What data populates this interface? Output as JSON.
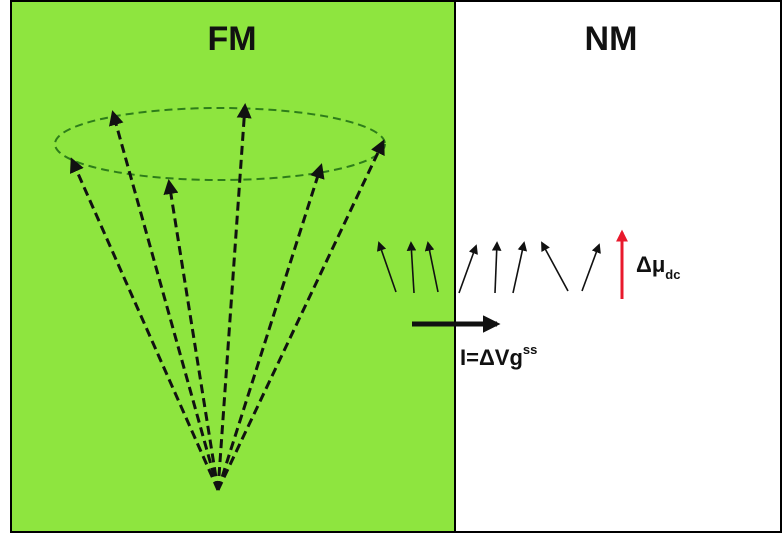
{
  "regions": {
    "left_label": "FM",
    "right_label": "NM"
  },
  "labels": {
    "current_main": "I=ΔVg",
    "current_sup": "ss",
    "mu_main": "Δμ",
    "mu_sub": "dc"
  },
  "colors": {
    "fm_fill": "#8ee53f",
    "nm_fill": "#ffffff",
    "border": "#000000",
    "cone_arrow": "#111111",
    "ellipse": "#2e7d1a",
    "mu_arrow": "#e8192c"
  }
}
